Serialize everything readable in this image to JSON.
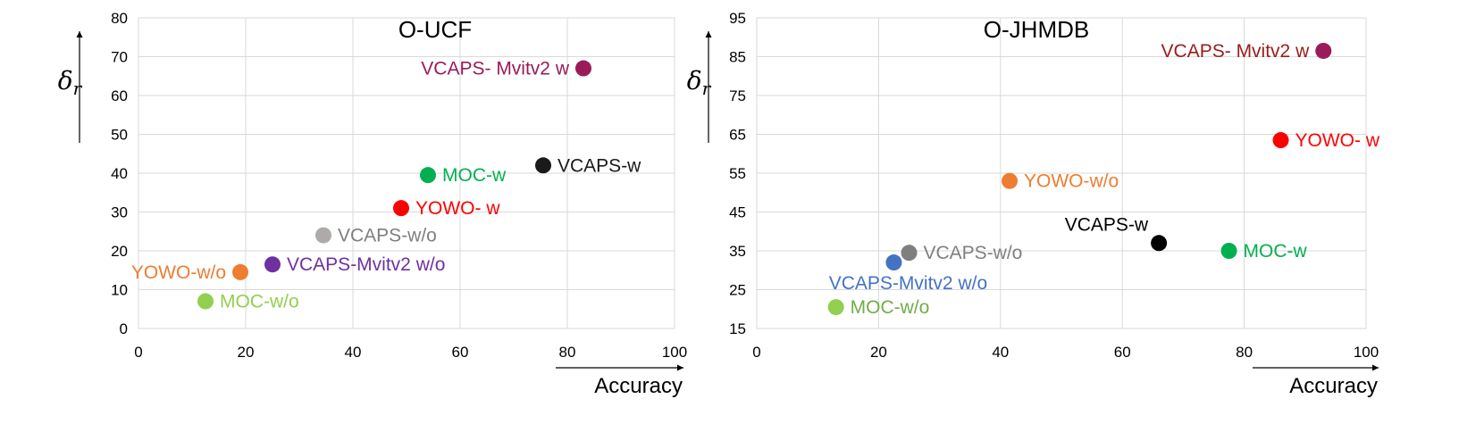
{
  "chart_data": [
    {
      "type": "scatter",
      "title": "O-UCF",
      "xlabel": "Accuracy",
      "ylabel": "δr",
      "xlim": [
        0,
        100
      ],
      "ylim": [
        0,
        80
      ],
      "xticks": [
        0,
        20,
        40,
        60,
        80,
        100
      ],
      "yticks": [
        0,
        10,
        20,
        30,
        40,
        50,
        60,
        70,
        80
      ],
      "grid": true,
      "points": [
        {
          "label": "VCAPS- Mvitv2 w",
          "x": 83,
          "y": 67,
          "color": "#9B1B5A",
          "label_pos": "left"
        },
        {
          "label": "VCAPS-w",
          "x": 75.5,
          "y": 42,
          "color": "#1a1a1a",
          "label_pos": "right"
        },
        {
          "label": "MOC-w",
          "x": 54,
          "y": 39.5,
          "color": "#00B050",
          "label_pos": "right"
        },
        {
          "label": "YOWO- w",
          "x": 49,
          "y": 31,
          "color": "#FF0000",
          "label_pos": "right"
        },
        {
          "label": "VCAPS-w/o",
          "x": 34.5,
          "y": 24,
          "color": "#AEAAAA",
          "label_pos": "right",
          "label_color": "#7F7F7F"
        },
        {
          "label": "YOWO-w/o",
          "x": 19,
          "y": 14.5,
          "color": "#ED7D31",
          "label_pos": "left"
        },
        {
          "label": "VCAPS-Mvitv2 w/o",
          "x": 25,
          "y": 16.5,
          "color": "#7030A0",
          "label_pos": "right"
        },
        {
          "label": "MOC-w/o",
          "x": 12.5,
          "y": 7,
          "color": "#92D050",
          "label_pos": "right"
        }
      ]
    },
    {
      "type": "scatter",
      "title": "O-JHMDB",
      "xlabel": "Accuracy",
      "ylabel": "δr",
      "xlim": [
        0,
        100
      ],
      "ylim": [
        15,
        95
      ],
      "xticks": [
        0,
        20,
        40,
        60,
        80,
        100
      ],
      "yticks": [
        15,
        25,
        35,
        45,
        55,
        65,
        75,
        85,
        95
      ],
      "grid": true,
      "points": [
        {
          "label": "VCAPS- Mvitv2 w",
          "x": 93,
          "y": 86.5,
          "color": "#9B1B5A",
          "label_pos": "left",
          "label_color": "#9B1B1B"
        },
        {
          "label": "YOWO- w",
          "x": 86,
          "y": 63.5,
          "color": "#FF0000",
          "label_pos": "right"
        },
        {
          "label": "YOWO-w/o",
          "x": 41.5,
          "y": 53,
          "color": "#ED7D31",
          "label_pos": "right"
        },
        {
          "label": "VCAPS-w",
          "x": 66,
          "y": 37,
          "color": "#000000",
          "label_pos": "above-left"
        },
        {
          "label": "MOC-w",
          "x": 77.5,
          "y": 35,
          "color": "#00B050",
          "label_pos": "right"
        },
        {
          "label": "VCAPS-w/o",
          "x": 25,
          "y": 34.5,
          "color": "#7F7F7F",
          "label_pos": "right"
        },
        {
          "label": "VCAPS-Mvitv2 w/o",
          "x": 22.5,
          "y": 32,
          "color": "#4472C4",
          "label_pos": "below"
        },
        {
          "label": "MOC-w/o",
          "x": 13,
          "y": 20.5,
          "color": "#92D050",
          "label_pos": "right",
          "label_color": "#70AD47"
        }
      ]
    }
  ]
}
